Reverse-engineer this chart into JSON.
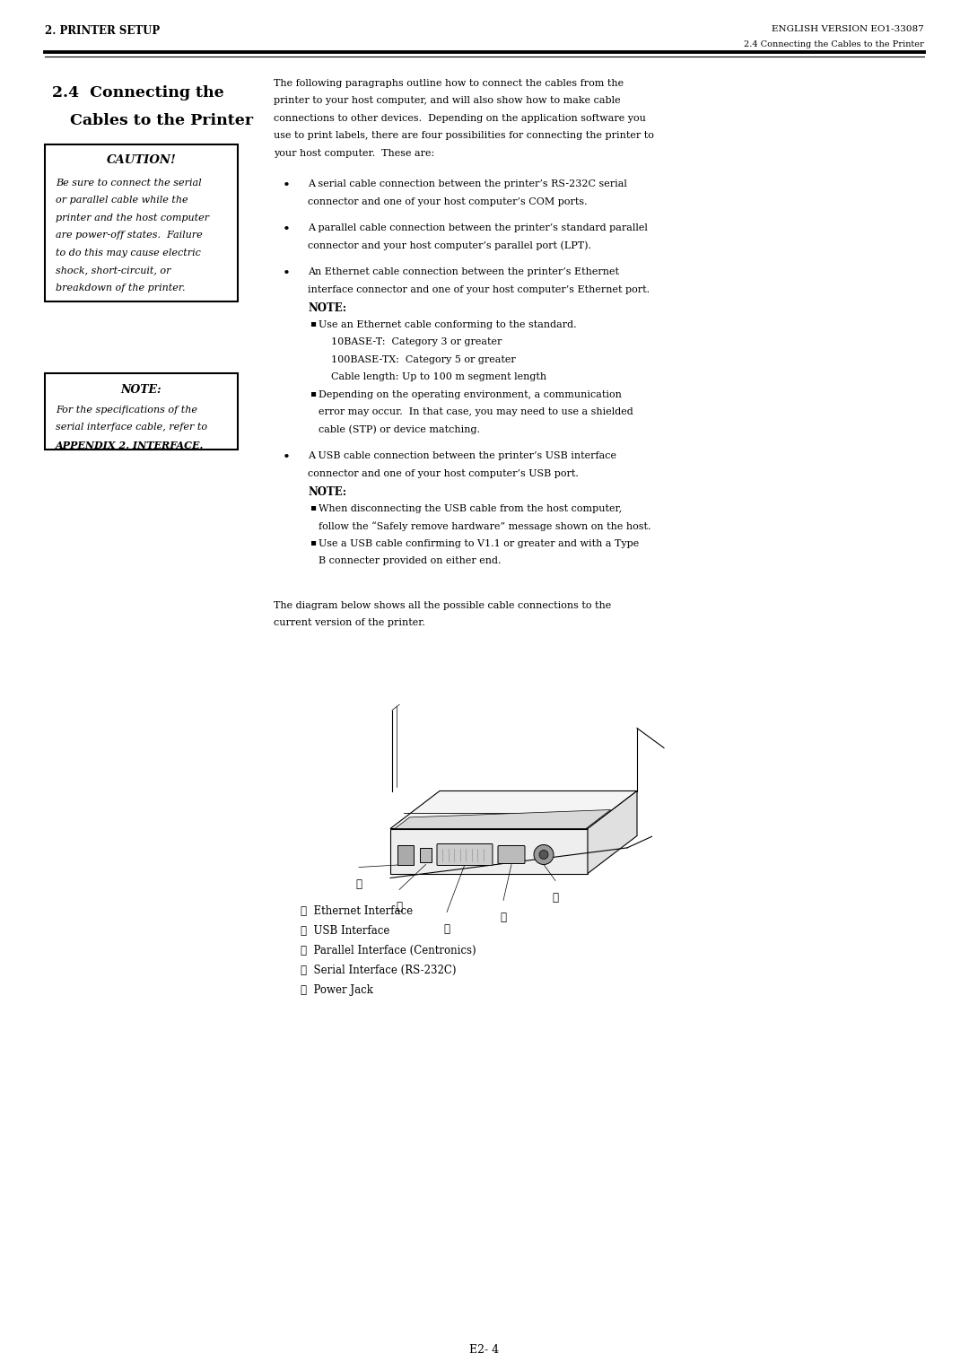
{
  "page_width": 10.8,
  "page_height": 15.28,
  "bg_color": "#ffffff",
  "header_left": "2. PRINTER SETUP",
  "header_right": "ENGLISH VERSION EO1-33087",
  "header_sub_right": "2.4 Connecting the Cables to the Printer",
  "section_title_line1": "2.4  Connecting the",
  "section_title_line2": "Cables to the Printer",
  "caution_title": "CAUTION!",
  "caution_body_lines": [
    "Be sure to connect the serial",
    "or parallel cable while the",
    "printer and the host computer",
    "are power-off states.  Failure",
    "to do this may cause electric",
    "shock, short-circuit, or",
    "breakdown of the printer."
  ],
  "note_title": "NOTE:",
  "note_body_lines": [
    "For the specifications of the",
    "serial interface cable, refer to",
    "APPENDIX 2, INTERFACE."
  ],
  "intro_lines": [
    "The following paragraphs outline how to connect the cables from the",
    "printer to your host computer, and will also show how to make cable",
    "connections to other devices.  Depending on the application software you",
    "use to print labels, there are four possibilities for connecting the printer to",
    "your host computer.  These are:"
  ],
  "bullet1_lines": [
    "A serial cable connection between the printer’s RS-232C serial",
    "connector and one of your host computer’s COM ports."
  ],
  "bullet2_lines": [
    "A parallel cable connection between the printer’s standard parallel",
    "connector and your host computer’s parallel port (LPT)."
  ],
  "bullet3_lines": [
    "An Ethernet cable connection between the printer’s Ethernet",
    "interface connector and one of your host computer’s Ethernet port."
  ],
  "bullet3_note": "NOTE:",
  "bullet3_sub1_lines": [
    "Use an Ethernet cable conforming to the standard.",
    "    10BASE-T:  Category 3 or greater",
    "    100BASE-TX:  Category 5 or greater",
    "    Cable length: Up to 100 m segment length"
  ],
  "bullet3_sub2_lines": [
    "Depending on the operating environment, a communication",
    "error may occur.  In that case, you may need to use a shielded",
    "cable (STP) or device matching."
  ],
  "bullet4_lines": [
    "A USB cable connection between the printer’s USB interface",
    "connector and one of your host computer’s USB port."
  ],
  "bullet4_note": "NOTE:",
  "bullet4_sub1_lines": [
    "When disconnecting the USB cable from the host computer,",
    "follow the “Safely remove hardware” message shown on the host."
  ],
  "bullet4_sub2_lines": [
    "Use a USB cable confirming to V1.1 or greater and with a Type",
    "B connecter provided on either end."
  ],
  "diagram_caption_lines": [
    "The diagram below shows all the possible cable connections to the",
    "current version of the printer."
  ],
  "interface_labels": [
    "①  Ethernet Interface",
    "②  USB Interface",
    "③  Parallel Interface (Centronics)",
    "④  Serial Interface (RS-232C)",
    "⑤  Power Jack"
  ],
  "footer_text": "E2- 4"
}
